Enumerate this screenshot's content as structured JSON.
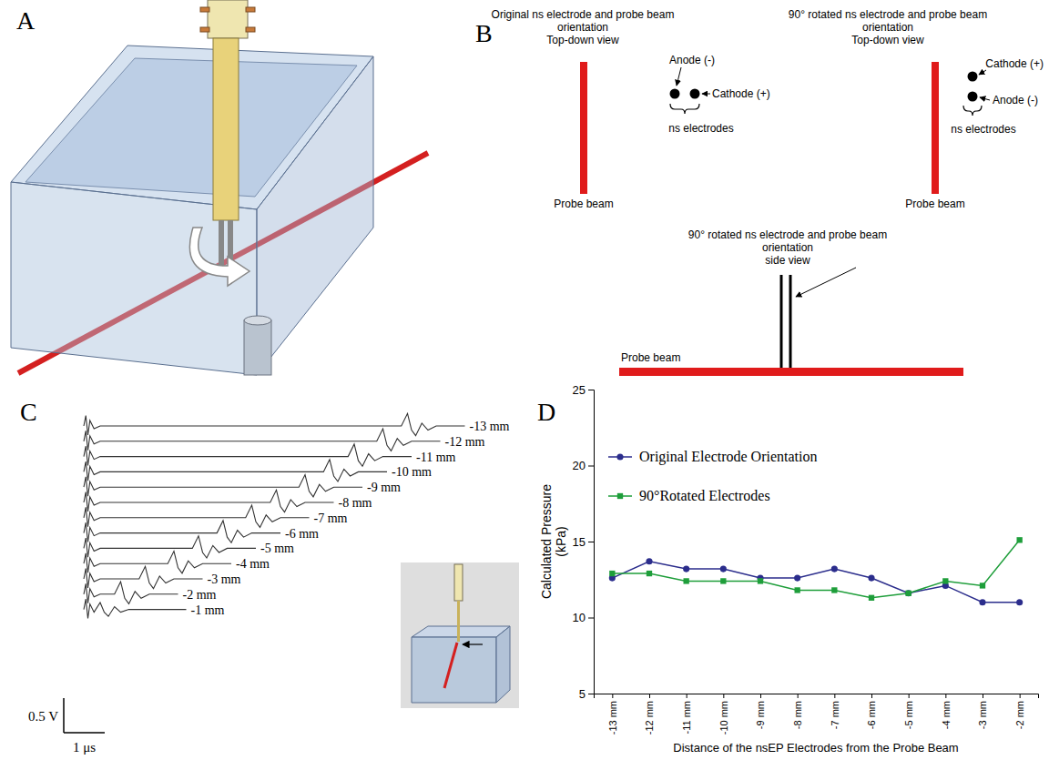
{
  "panel_a": {
    "label": "A"
  },
  "panel_b": {
    "label": "B",
    "original": {
      "title": "Original ns electrode and probe beam orientation",
      "view": "Top-down view",
      "anode": "Anode (-)",
      "cathode": "Cathode (+)",
      "electrodes": "ns electrodes",
      "beam": "Probe beam"
    },
    "rotated_top": {
      "title": "90° rotated ns electrode and probe beam orientation",
      "view": "Top-down view",
      "cathode": "Cathode (+)",
      "anode": "Anode (-)",
      "electrodes": "ns electrodes",
      "beam": "Probe beam"
    },
    "rotated_side": {
      "title": "90° rotated ns electrode and probe beam orientation",
      "view": "side view",
      "beam": "Probe beam"
    }
  },
  "chart_data": [
    {
      "panel": "C",
      "type": "line",
      "color": "#333333",
      "tick_labels": false,
      "scale_bars": {
        "y": {
          "value": 0.5,
          "label": "0.5 V"
        },
        "x": {
          "value": 1,
          "label": "1 μs"
        }
      },
      "series": [
        {
          "name": "-13 mm",
          "x": [
            0,
            0.05,
            0.1,
            0.15,
            0.25,
            0.4,
            7.75,
            7.9,
            8.0,
            8.1,
            8.25,
            8.4,
            8.6,
            9.3
          ],
          "values": [
            0,
            0.15,
            -0.13,
            0.08,
            -0.04,
            0,
            0,
            0.18,
            -0.06,
            -0.14,
            0.04,
            -0.06,
            0,
            0
          ]
        },
        {
          "name": "-12 mm",
          "x": [
            0,
            0.05,
            0.1,
            0.15,
            0.25,
            0.4,
            7.15,
            7.3,
            7.4,
            7.5,
            7.65,
            7.8,
            8.0,
            8.7
          ],
          "values": [
            0,
            0.15,
            -0.13,
            0.08,
            -0.04,
            0,
            0,
            0.18,
            -0.06,
            -0.14,
            0.04,
            -0.06,
            0,
            0
          ]
        },
        {
          "name": "-11 mm",
          "x": [
            0,
            0.05,
            0.1,
            0.15,
            0.25,
            0.4,
            6.45,
            6.6,
            6.7,
            6.8,
            6.95,
            7.1,
            7.3,
            8.0
          ],
          "values": [
            0,
            0.15,
            -0.13,
            0.08,
            -0.04,
            0,
            0,
            0.18,
            -0.06,
            -0.14,
            0.04,
            -0.06,
            0,
            0
          ]
        },
        {
          "name": "-10 mm",
          "x": [
            0,
            0.05,
            0.1,
            0.15,
            0.25,
            0.4,
            5.85,
            6.0,
            6.1,
            6.2,
            6.35,
            6.5,
            6.7,
            7.4
          ],
          "values": [
            0,
            0.15,
            -0.13,
            0.08,
            -0.04,
            0,
            0,
            0.18,
            -0.06,
            -0.14,
            0.04,
            -0.06,
            0,
            0
          ]
        },
        {
          "name": "-9 mm",
          "x": [
            0,
            0.05,
            0.1,
            0.15,
            0.25,
            0.4,
            5.25,
            5.4,
            5.5,
            5.6,
            5.75,
            5.9,
            6.1,
            6.8
          ],
          "values": [
            0,
            0.15,
            -0.13,
            0.08,
            -0.04,
            0,
            0,
            0.18,
            -0.06,
            -0.14,
            0.04,
            -0.06,
            0,
            0
          ]
        },
        {
          "name": "-8 mm",
          "x": [
            0,
            0.05,
            0.1,
            0.15,
            0.25,
            0.4,
            4.55,
            4.7,
            4.8,
            4.9,
            5.05,
            5.2,
            5.4,
            6.1
          ],
          "values": [
            0,
            0.15,
            -0.13,
            0.08,
            -0.04,
            0,
            0,
            0.18,
            -0.06,
            -0.14,
            0.04,
            -0.06,
            0,
            0
          ]
        },
        {
          "name": "-7 mm",
          "x": [
            0,
            0.05,
            0.1,
            0.15,
            0.25,
            0.4,
            3.95,
            4.1,
            4.2,
            4.3,
            4.45,
            4.6,
            4.8,
            5.5
          ],
          "values": [
            0,
            0.15,
            -0.13,
            0.08,
            -0.04,
            0,
            0,
            0.18,
            -0.06,
            -0.14,
            0.04,
            -0.06,
            0,
            0
          ]
        },
        {
          "name": "-6 mm",
          "x": [
            0,
            0.05,
            0.1,
            0.15,
            0.25,
            0.4,
            3.25,
            3.4,
            3.5,
            3.6,
            3.75,
            3.9,
            4.1,
            4.8
          ],
          "values": [
            0,
            0.15,
            -0.13,
            0.08,
            -0.04,
            0,
            0,
            0.18,
            -0.06,
            -0.14,
            0.04,
            -0.06,
            0,
            0
          ]
        },
        {
          "name": "-5 mm",
          "x": [
            0,
            0.05,
            0.1,
            0.15,
            0.25,
            0.4,
            2.65,
            2.8,
            2.9,
            3.0,
            3.15,
            3.3,
            3.5,
            4.2
          ],
          "values": [
            0,
            0.15,
            -0.13,
            0.08,
            -0.04,
            0,
            0,
            0.18,
            -0.06,
            -0.14,
            0.04,
            -0.06,
            0,
            0
          ]
        },
        {
          "name": "-4 mm",
          "x": [
            0,
            0.05,
            0.1,
            0.15,
            0.25,
            0.4,
            2.05,
            2.2,
            2.3,
            2.4,
            2.55,
            2.7,
            2.9,
            3.6
          ],
          "values": [
            0,
            0.15,
            -0.13,
            0.08,
            -0.04,
            0,
            0,
            0.18,
            -0.06,
            -0.14,
            0.04,
            -0.06,
            0,
            0
          ]
        },
        {
          "name": "-3 mm",
          "x": [
            0,
            0.05,
            0.1,
            0.15,
            0.25,
            0.4,
            1.35,
            1.5,
            1.6,
            1.7,
            1.85,
            2.0,
            2.2,
            2.9
          ],
          "values": [
            0,
            0.15,
            -0.13,
            0.08,
            -0.04,
            0,
            0,
            0.18,
            -0.06,
            -0.14,
            0.04,
            -0.06,
            0,
            0
          ]
        },
        {
          "name": "-2 mm",
          "x": [
            0,
            0.05,
            0.1,
            0.15,
            0.25,
            0.4,
            0.75,
            0.9,
            1.0,
            1.1,
            1.25,
            1.4,
            1.6,
            2.3
          ],
          "values": [
            0,
            0.15,
            -0.13,
            0.08,
            -0.04,
            0,
            0,
            0.18,
            -0.06,
            -0.14,
            0.04,
            -0.06,
            0,
            0
          ]
        },
        {
          "name": "-1 mm",
          "x": [
            0,
            0.05,
            0.1,
            0.15,
            0.25,
            0.4,
            0.5,
            0.6,
            0.75,
            0.9,
            1.1,
            2.5
          ],
          "values": [
            0,
            0.15,
            -0.13,
            0.08,
            -0.04,
            0.1,
            -0.04,
            -0.1,
            0.04,
            -0.04,
            0,
            0
          ]
        }
      ]
    },
    {
      "panel": "D",
      "type": "line",
      "x_label": "Distance of the nsEP Electrodes from the Probe Beam",
      "y_label": "Calculated Pressure (kPa)",
      "categories": [
        "-13 mm",
        "-12 mm",
        "-11 mm",
        "-10 mm",
        "-9 mm",
        "-8 mm",
        "-7 mm",
        "-6 mm",
        "-5 mm",
        "-4 mm",
        "-3 mm",
        "-2 mm"
      ],
      "ylim": [
        5,
        25
      ],
      "yticks": [
        5,
        10,
        15,
        20,
        25
      ],
      "legend": "upper left",
      "series": [
        {
          "name": "Original Electrode Orientation",
          "color": "#2b2d8c",
          "marker": "circle",
          "values": [
            12.6,
            13.7,
            13.2,
            13.2,
            12.6,
            12.6,
            13.2,
            12.6,
            11.6,
            12.1,
            11.0,
            11.0
          ]
        },
        {
          "name": "90°Rotated Electrodes",
          "color": "#1e9e3a",
          "marker": "square",
          "values": [
            12.9,
            12.9,
            12.4,
            12.4,
            12.4,
            11.8,
            11.8,
            11.3,
            11.6,
            12.4,
            12.1,
            15.1
          ]
        }
      ]
    }
  ]
}
